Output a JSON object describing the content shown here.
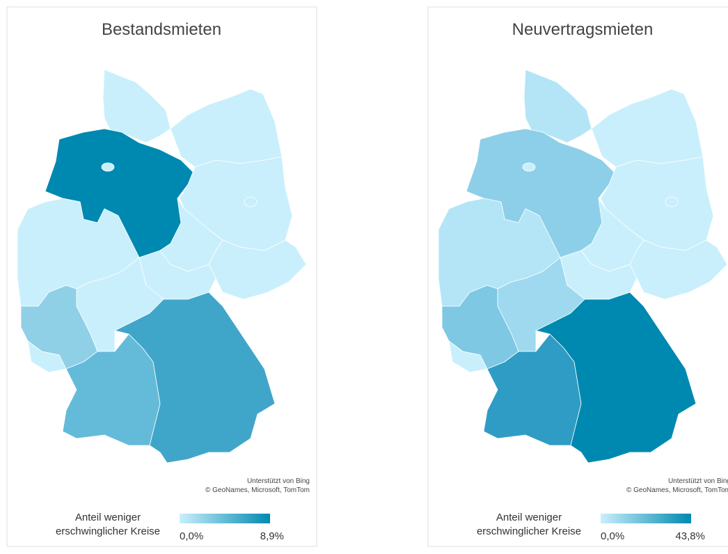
{
  "panels": [
    {
      "title": "Bestandsmieten",
      "attribution": [
        "Unterstützt von Bing",
        "© GeoNames, Microsoft, TomTom"
      ],
      "legend": {
        "label": [
          "Anteil weniger",
          "erschwinglicher Kreise"
        ],
        "min_label": "0,0%",
        "max_label": "8,9%",
        "colors": [
          "#c9effc",
          "#0089b0"
        ]
      },
      "region_colors": [
        "#c9effc",
        "#c9effc",
        "#0089b0",
        "#c9effc",
        "#c9effc",
        "#c9effc",
        "#c9effc",
        "#c9effc",
        "#c9effc",
        "#8fd0e6",
        "#c9effc",
        "#64bbd9",
        "#40a6c9"
      ]
    },
    {
      "title": "Neuvertragsmieten",
      "attribution": [
        "Unterstützt von Bing",
        "© GeoNames, Microsoft, TomTom"
      ],
      "legend": {
        "label": [
          "Anteil weniger",
          "erschwinglicher Kreise"
        ],
        "min_label": "0,0%",
        "max_label": "43,8%",
        "colors": [
          "#c9effc",
          "#0089b0"
        ]
      },
      "region_colors": [
        "#b3e5f6",
        "#c9effc",
        "#8dcfe8",
        "#c9effc",
        "#c9effc",
        "#c9effc",
        "#c9effc",
        "#b3e5f6",
        "#9fd9ef",
        "#7fc8e3",
        "#c9effc",
        "#2f9cc5",
        "#0089b0"
      ]
    }
  ]
}
